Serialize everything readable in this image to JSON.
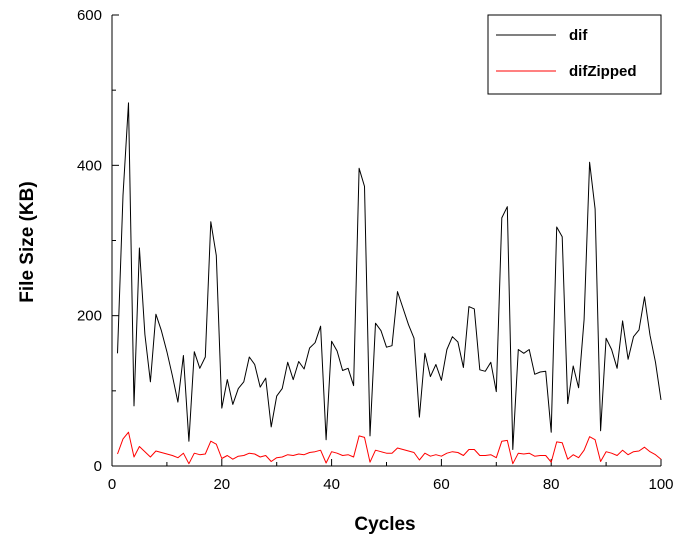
{
  "chart_data": {
    "type": "line",
    "xlabel": "Cycles",
    "ylabel": "File Size (KB)",
    "xlim": [
      0,
      100
    ],
    "ylim": [
      0,
      600
    ],
    "x_ticks": [
      "0",
      "20",
      "40",
      "60",
      "80",
      "100"
    ],
    "y_ticks": [
      "0",
      "200",
      "400",
      "600"
    ],
    "grid": false,
    "legend_position": "top-right",
    "series": [
      {
        "name": "dif",
        "color": "#000000",
        "x": [
          1,
          2,
          3,
          4,
          5,
          6,
          7,
          8,
          9,
          10,
          11,
          12,
          13,
          14,
          15,
          16,
          17,
          18,
          19,
          20,
          21,
          22,
          23,
          24,
          25,
          26,
          27,
          28,
          29,
          30,
          31,
          32,
          33,
          34,
          35,
          36,
          37,
          38,
          39,
          40,
          41,
          42,
          43,
          44,
          45,
          46,
          47,
          48,
          49,
          50,
          51,
          52,
          53,
          54,
          55,
          56,
          57,
          58,
          59,
          60,
          61,
          62,
          63,
          64,
          65,
          66,
          67,
          68,
          69,
          70,
          71,
          72,
          73,
          74,
          75,
          76,
          77,
          78,
          79,
          80,
          81,
          82,
          83,
          84,
          85,
          86,
          87,
          88,
          89,
          90,
          91,
          92,
          93,
          94,
          95,
          96,
          97,
          98,
          99,
          100
        ],
        "values": [
          150,
          360,
          483,
          80,
          290,
          175,
          112,
          202,
          180,
          152,
          120,
          85,
          147,
          33,
          152,
          130,
          145,
          325,
          280,
          77,
          115,
          82,
          103,
          112,
          145,
          135,
          105,
          117,
          52,
          93,
          103,
          138,
          115,
          139,
          129,
          157,
          164,
          186,
          35,
          166,
          153,
          127,
          130,
          107,
          396,
          372,
          40,
          190,
          180,
          158,
          160,
          232,
          210,
          188,
          170,
          65,
          150,
          119,
          135,
          114,
          155,
          172,
          165,
          131,
          212,
          209,
          128,
          126,
          138,
          99,
          330,
          345,
          22,
          155,
          150,
          155,
          122,
          125,
          126,
          45,
          318,
          305,
          83,
          133,
          104,
          195,
          404,
          342,
          47,
          170,
          155,
          130,
          193,
          142,
          172,
          181,
          225,
          174,
          138,
          88
        ]
      },
      {
        "name": "difZipped",
        "color": "#ff0000",
        "x": [
          1,
          2,
          3,
          4,
          5,
          6,
          7,
          8,
          9,
          10,
          11,
          12,
          13,
          14,
          15,
          16,
          17,
          18,
          19,
          20,
          21,
          22,
          23,
          24,
          25,
          26,
          27,
          28,
          29,
          30,
          31,
          32,
          33,
          34,
          35,
          36,
          37,
          38,
          39,
          40,
          41,
          42,
          43,
          44,
          45,
          46,
          47,
          48,
          49,
          50,
          51,
          52,
          53,
          54,
          55,
          56,
          57,
          58,
          59,
          60,
          61,
          62,
          63,
          64,
          65,
          66,
          67,
          68,
          69,
          70,
          71,
          72,
          73,
          74,
          75,
          76,
          77,
          78,
          79,
          80,
          81,
          82,
          83,
          84,
          85,
          86,
          87,
          88,
          89,
          90,
          91,
          92,
          93,
          94,
          95,
          96,
          97,
          98,
          99,
          100
        ],
        "values": [
          16,
          36,
          45,
          12,
          26,
          19,
          12,
          20,
          18,
          16,
          14,
          11,
          17,
          3,
          17,
          15,
          16,
          33,
          29,
          10,
          14,
          9,
          13,
          14,
          17,
          16,
          12,
          14,
          6,
          11,
          12,
          15,
          14,
          16,
          15,
          18,
          19,
          21,
          4,
          19,
          17,
          14,
          15,
          12,
          40,
          38,
          5,
          21,
          19,
          17,
          17,
          24,
          22,
          20,
          18,
          8,
          17,
          13,
          15,
          13,
          17,
          19,
          18,
          14,
          22,
          22,
          14,
          14,
          15,
          11,
          33,
          34,
          3,
          17,
          16,
          17,
          13,
          14,
          14,
          5,
          32,
          31,
          9,
          15,
          11,
          21,
          39,
          35,
          6,
          19,
          17,
          14,
          21,
          15,
          19,
          20,
          25,
          19,
          15,
          9
        ]
      }
    ]
  }
}
